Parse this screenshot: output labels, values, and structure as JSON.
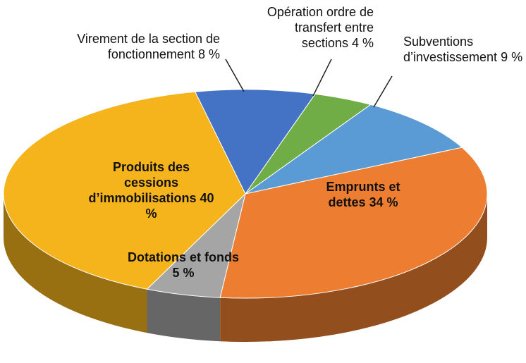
{
  "chart_data": {
    "type": "pie",
    "categories": [
      "Virement de la section de fonctionnement",
      "Opération ordre de transfert entre sections",
      "Subventions d’investissement",
      "Emprunts et dettes",
      "Dotations et fonds",
      "Produits des cessions d’immobilisations"
    ],
    "values": [
      8,
      4,
      9,
      34,
      5,
      40
    ],
    "value_labels": [
      "8 %",
      "4 %",
      "9 %",
      "34 %",
      "5 %",
      "40 %"
    ],
    "colors": [
      "#4472c4",
      "#70ad47",
      "#5b9bd5",
      "#ed7d31",
      "#a5a5a5",
      "#f5b31c"
    ]
  }
}
